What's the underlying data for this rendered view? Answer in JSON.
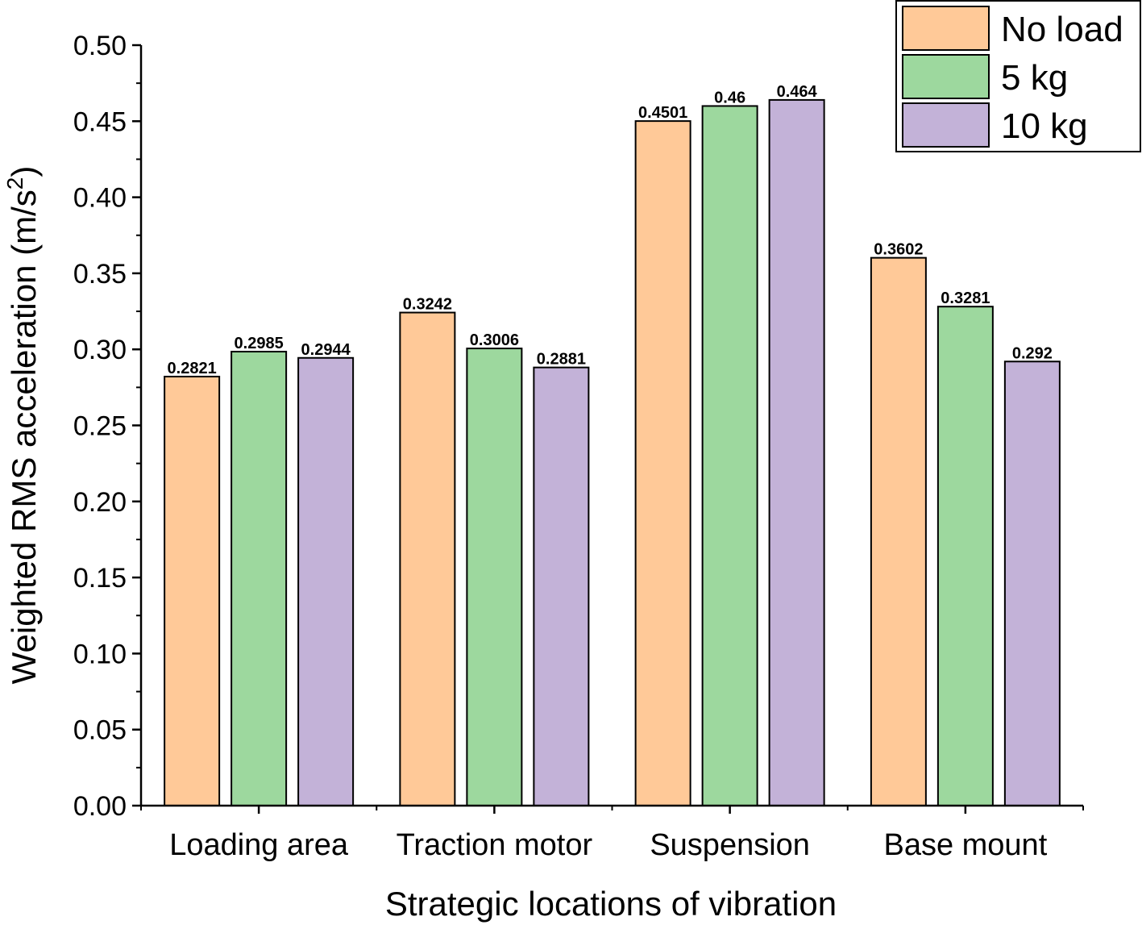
{
  "chart_data": {
    "type": "bar",
    "xlabel": "Strategic locations of vibration",
    "ylabel": "Weighted RMS acceleration (m/s",
    "ylabel_superscript": "2",
    "ylabel_suffix": ")",
    "ylim": [
      0,
      0.5
    ],
    "y_ticks": [
      "0.00",
      "0.05",
      "0.10",
      "0.15",
      "0.20",
      "0.25",
      "0.30",
      "0.35",
      "0.40",
      "0.45",
      "0.50"
    ],
    "categories": [
      "Loading area",
      "Traction motor",
      "Suspension",
      "Base mount"
    ],
    "series": [
      {
        "name": "No load",
        "color": "#ffc998",
        "values": [
          0.2821,
          0.3242,
          0.4501,
          0.3602
        ],
        "labels": [
          "0.2821",
          "0.3242",
          "0.4501",
          "0.3602"
        ]
      },
      {
        "name": "5 kg",
        "color": "#9dd89e",
        "values": [
          0.2985,
          0.3006,
          0.46,
          0.3281
        ],
        "labels": [
          "0.2985",
          "0.3006",
          "0.46",
          "0.3281"
        ]
      },
      {
        "name": "10 kg",
        "color": "#c3b2d8",
        "values": [
          0.2944,
          0.2881,
          0.464,
          0.292
        ],
        "labels": [
          "0.2944",
          "0.2881",
          "0.464",
          "0.292"
        ]
      }
    ],
    "legend": "top-right",
    "grid": false
  }
}
